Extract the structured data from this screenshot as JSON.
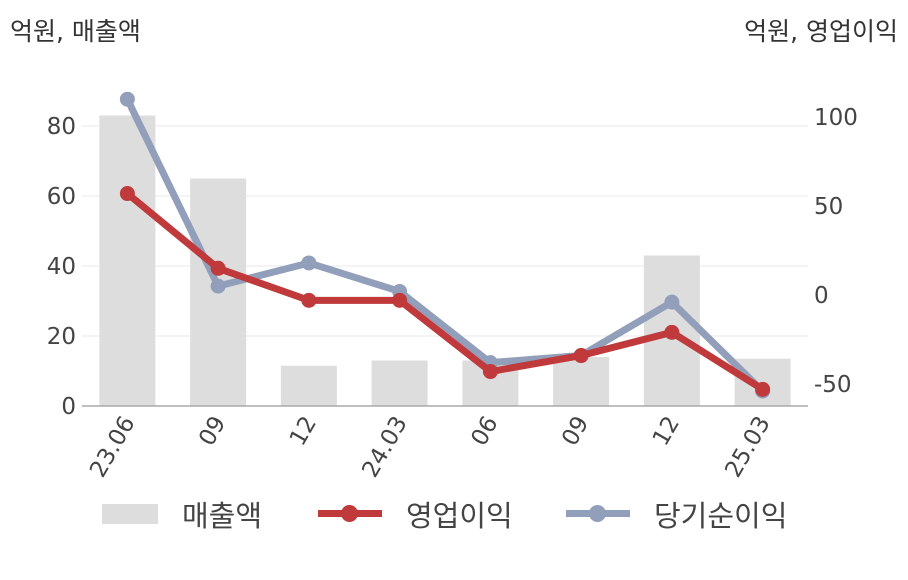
{
  "units": {
    "left": "억원, 매출액",
    "right": "억원, 영업이익"
  },
  "legend": {
    "bar": "매출액",
    "line1": "영업이익",
    "line2": "당기순이익"
  },
  "colors": {
    "bar": "#dddddd",
    "operating": "#c0393b",
    "net": "#929fba",
    "grid": "#e8e8e8",
    "axis": "#aaaaaa"
  },
  "chart_data": {
    "type": "bar+line",
    "categories": [
      "23.06",
      "09",
      "12",
      "24.03",
      "06",
      "09",
      "12",
      "25.03"
    ],
    "left_axis": {
      "ticks": [
        0,
        20,
        40,
        60,
        80
      ],
      "range": [
        0,
        80
      ]
    },
    "right_axis": {
      "ticks": [
        100,
        50,
        0,
        -50
      ],
      "range": [
        -63,
        95
      ]
    },
    "series": [
      {
        "name": "매출액",
        "type": "bar",
        "axis": "left",
        "values": [
          83,
          65,
          11.5,
          13,
          13,
          14,
          43,
          13.5
        ]
      },
      {
        "name": "영업이익",
        "type": "line",
        "axis": "right",
        "values": [
          57,
          15,
          -3,
          -3,
          -43,
          -34,
          -21,
          -53
        ]
      },
      {
        "name": "당기순이익",
        "type": "line",
        "axis": "right",
        "values": [
          110,
          5,
          18,
          2,
          -38,
          -34,
          -4,
          -54
        ]
      }
    ]
  }
}
